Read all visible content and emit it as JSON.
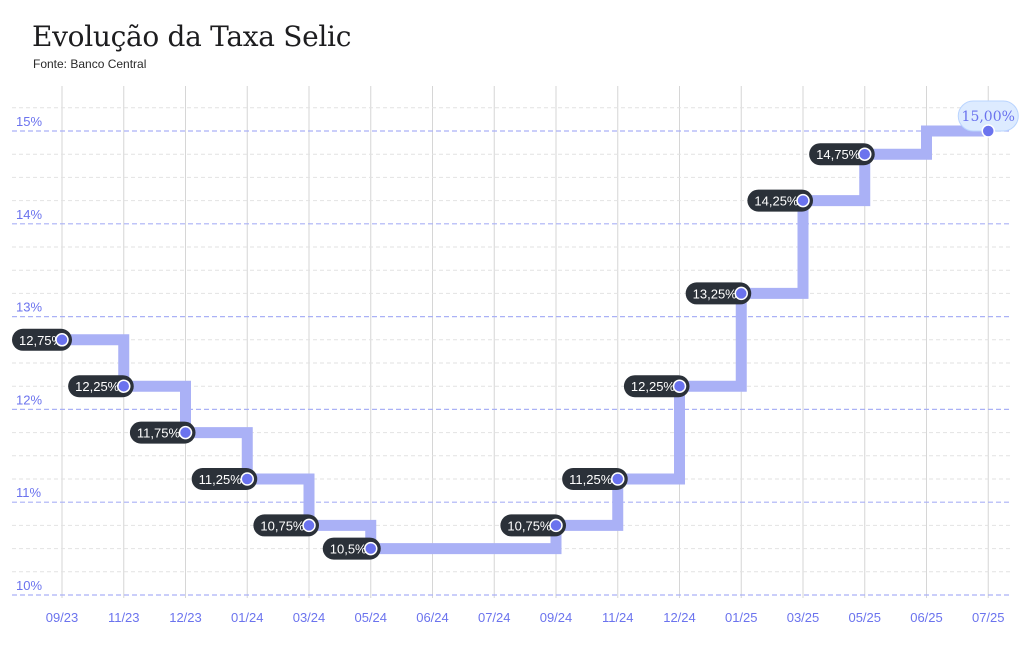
{
  "title": "Evolução da Taxa Selic",
  "subtitle": "Fonte: Banco Central",
  "colors": {
    "line": "#aab1f6",
    "point": "#6b73ee",
    "label_bg": "#2b3139",
    "label_text": "#ffffff",
    "last_label_bg": "#ddebff",
    "last_label_text": "#6b73ee",
    "axis_text": "#6b73ee",
    "grid_major": "#aab1f6",
    "grid_minor": "#e2e2e2",
    "grid_vertical": "#d6d6d6"
  },
  "chart_data": {
    "type": "line",
    "step": true,
    "x": [
      "09/23",
      "11/23",
      "12/23",
      "01/24",
      "03/24",
      "05/24",
      "06/24",
      "07/24",
      "09/24",
      "11/24",
      "12/24",
      "01/25",
      "03/25",
      "05/25",
      "06/25",
      "07/25"
    ],
    "values": [
      12.75,
      12.25,
      11.75,
      11.25,
      10.75,
      10.5,
      10.5,
      10.5,
      10.75,
      11.25,
      12.25,
      13.25,
      14.25,
      14.75,
      15.0,
      15.0
    ],
    "labels": [
      {
        "x": "09/23",
        "y": 12.75,
        "text": "12,75%"
      },
      {
        "x": "11/23",
        "y": 12.25,
        "text": "12,25%"
      },
      {
        "x": "12/23",
        "y": 11.75,
        "text": "11,75%"
      },
      {
        "x": "01/24",
        "y": 11.25,
        "text": "11,25%"
      },
      {
        "x": "03/24",
        "y": 10.75,
        "text": "10,75%"
      },
      {
        "x": "05/24",
        "y": 10.5,
        "text": "10,5%"
      },
      {
        "x": "09/24",
        "y": 10.75,
        "text": "10,75%"
      },
      {
        "x": "11/24",
        "y": 11.25,
        "text": "11,25%"
      },
      {
        "x": "12/24",
        "y": 12.25,
        "text": "12,25%"
      },
      {
        "x": "01/25",
        "y": 13.25,
        "text": "13,25%"
      },
      {
        "x": "03/25",
        "y": 14.25,
        "text": "14,25%"
      },
      {
        "x": "05/25",
        "y": 14.75,
        "text": "14,75%"
      },
      {
        "x": "07/25",
        "y": 15.0,
        "text": "15,00%",
        "highlight": true
      }
    ],
    "yticks": [
      10,
      11,
      12,
      13,
      14,
      15
    ],
    "ytick_labels": [
      "10%",
      "11%",
      "12%",
      "13%",
      "14%",
      "15%"
    ],
    "ylim": [
      10,
      15.5
    ],
    "grid": true,
    "legend": "none"
  }
}
